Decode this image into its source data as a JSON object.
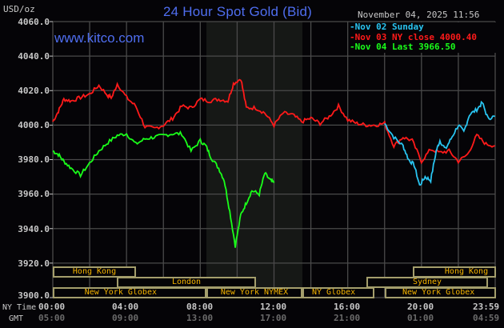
{
  "header": {
    "title": "24 Hour Spot Gold (Bid)",
    "unit_label": "USD/oz",
    "datetime": "November 04, 2025 11:56",
    "watermark": "www.kitco.com"
  },
  "legend": {
    "items": [
      {
        "label": "Nov 02 Sunday",
        "color": "#29c4f0"
      },
      {
        "label": "Nov 03 NY close 4000.40",
        "color": "#ff1a1a"
      },
      {
        "label": "Nov 04 Last 3966.50",
        "color": "#1aff1a"
      }
    ]
  },
  "y_axis": {
    "ticks": [
      "4060.0",
      "4040.0",
      "4020.0",
      "4000.0",
      "3980.0",
      "3960.0",
      "3940.0",
      "3920.0",
      "3900.0"
    ]
  },
  "x_axis": {
    "ny_label": "NY Time",
    "gmt_label": "GMT",
    "ny_ticks": [
      "00:00",
      "04:00",
      "08:00",
      "12:00",
      "16:00",
      "20:00",
      "23:59"
    ],
    "gmt_ticks": [
      "05:00",
      "09:00",
      "13:00",
      "17:00",
      "21:00",
      "01:00",
      "04:59"
    ]
  },
  "sessions": {
    "row1": [
      {
        "label": "Hong Kong"
      },
      {
        "label": "Hong Kong"
      }
    ],
    "row2": [
      {
        "label": "London"
      },
      {
        "label": "Sydney"
      }
    ],
    "row3": [
      {
        "label": "New York Globex"
      },
      {
        "label": "New York NYMEX"
      },
      {
        "label": "NY Globex"
      },
      {
        "label": "New York Globex"
      }
    ]
  },
  "colors": {
    "background": "#050407",
    "grid": "#4a4a4a",
    "nymex_shade": "#161816",
    "title": "#4f6ef0",
    "session_border": "#a49e6c",
    "session_text": "#f5b400",
    "nov02": "#29c4f0",
    "nov03": "#ff1a1a",
    "nov04": "#1aff1a"
  },
  "chart_data": {
    "type": "line",
    "title": "24 Hour Spot Gold (Bid)",
    "xlabel": "NY Time / GMT",
    "ylabel": "USD/oz",
    "ylim": [
      3900,
      4060
    ],
    "xlim_hours": [
      0,
      24
    ],
    "grid": true,
    "legend_position": "top-right",
    "annotations": [
      "www.kitco.com",
      "November 04, 2025 11:56",
      "Shaded region: New York NYMEX session 08:00-13:30"
    ],
    "series": [
      {
        "name": "Nov 02 Sunday",
        "color": "#29c4f0",
        "x_hours": [
          18.0,
          18.5,
          19.0,
          19.3,
          19.6,
          19.9,
          20.2,
          20.5,
          20.8,
          21.0,
          21.3,
          21.6,
          22.0,
          22.3,
          22.6,
          23.0,
          23.3,
          23.6,
          23.99
        ],
        "values": [
          4001,
          3993,
          3988,
          3980,
          3977,
          3965,
          3970,
          3968,
          3985,
          3991,
          3986,
          3992,
          4000,
          3996,
          4006,
          4009,
          4013,
          4004,
          4005
        ]
      },
      {
        "name": "Nov 03 NY close 4000.40",
        "color": "#ff1a1a",
        "x_hours": [
          0.0,
          0.3,
          0.6,
          1.0,
          1.5,
          2.0,
          2.5,
          3.0,
          3.2,
          3.5,
          4.0,
          4.5,
          5.0,
          5.5,
          6.0,
          6.5,
          7.0,
          7.5,
          8.0,
          8.5,
          9.0,
          9.5,
          9.8,
          10.2,
          10.5,
          11.0,
          11.5,
          12.0,
          12.5,
          13.0,
          13.5,
          14.0,
          14.5,
          15.0,
          15.5,
          16.0,
          16.5,
          17.0,
          17.5,
          18.0,
          18.5,
          19.0,
          19.5,
          20.0,
          20.5,
          21.0,
          21.5,
          22.0,
          22.5,
          23.0,
          23.5,
          23.99
        ],
        "values": [
          4002,
          4008,
          4015,
          4014,
          4016,
          4018,
          4023,
          4017,
          4016,
          4024,
          4016,
          4011,
          3999,
          3998,
          4000,
          4004,
          4011,
          4010,
          4015,
          4014,
          4015,
          4014,
          4024,
          4027,
          4010,
          4010,
          4007,
          4000,
          4007,
          4006,
          4002,
          4004,
          4001,
          4005,
          4011,
          4003,
          4001,
          4000,
          4000,
          4001,
          3988,
          3993,
          3991,
          3979,
          3986,
          3984,
          3985,
          3979,
          3983,
          3994,
          3989,
          3988
        ]
      },
      {
        "name": "Nov 04 Last 3966.50",
        "color": "#1aff1a",
        "x_hours": [
          0.0,
          0.3,
          0.6,
          1.0,
          1.5,
          2.0,
          2.5,
          3.0,
          3.5,
          4.0,
          4.5,
          5.0,
          5.5,
          6.0,
          6.5,
          7.0,
          7.5,
          8.0,
          8.3,
          8.6,
          9.0,
          9.3,
          9.6,
          9.9,
          10.2,
          10.5,
          10.8,
          11.2,
          11.5,
          11.8,
          12.0
        ],
        "values": [
          3985,
          3983,
          3979,
          3975,
          3971,
          3978,
          3985,
          3990,
          3994,
          3995,
          3989,
          3992,
          3993,
          3994,
          3995,
          3995,
          3985,
          3991,
          3988,
          3981,
          3975,
          3968,
          3950,
          3930,
          3948,
          3955,
          3962,
          3960,
          3972,
          3968,
          3966.5
        ]
      }
    ]
  }
}
